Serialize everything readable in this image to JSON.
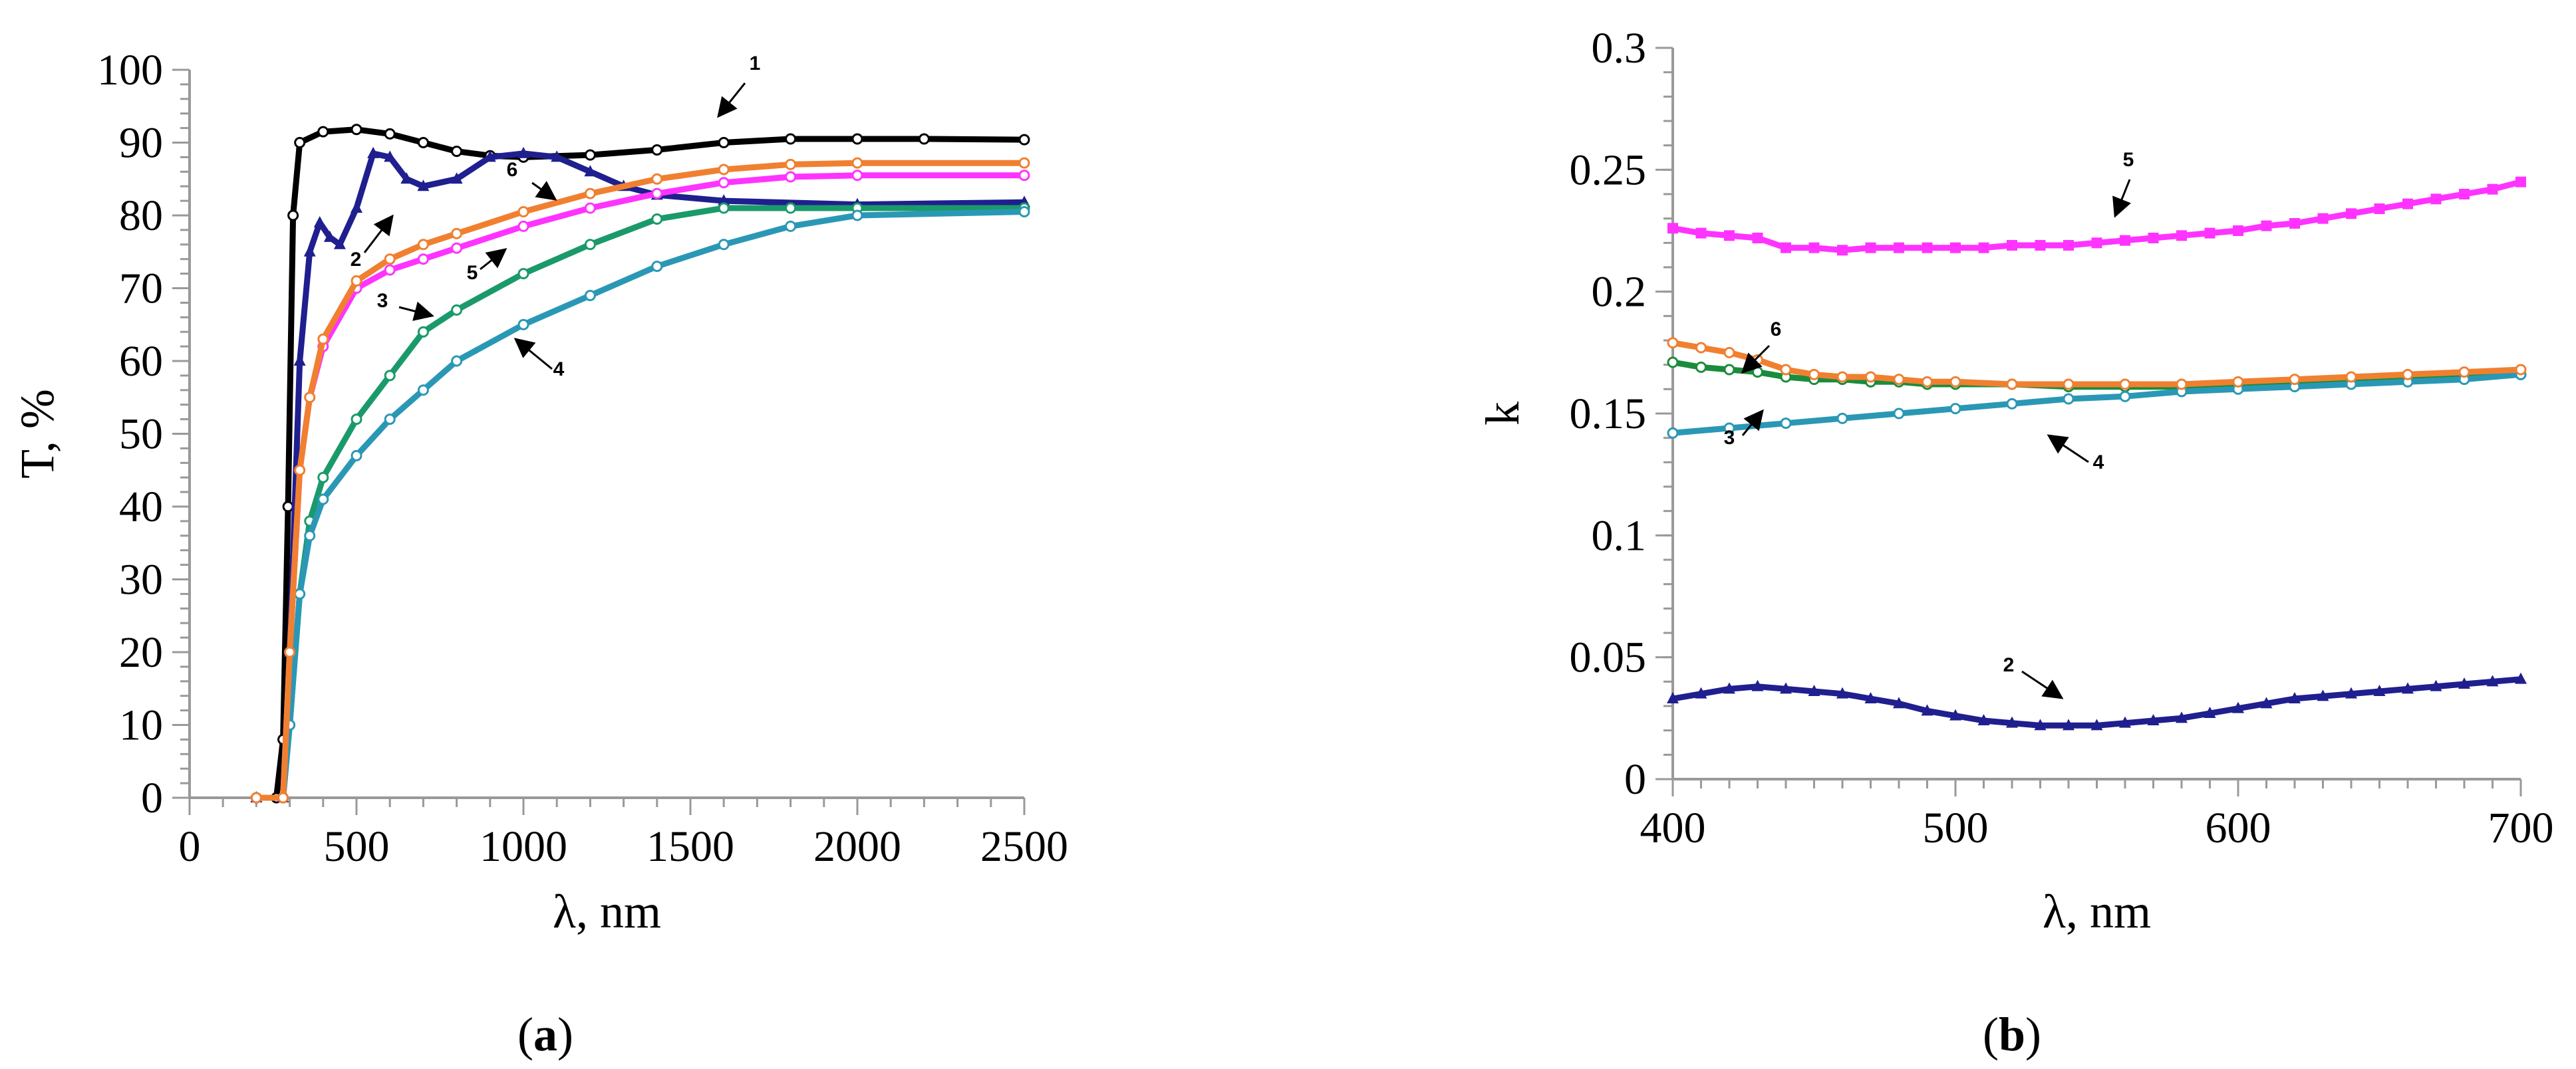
{
  "chart_data": [
    {
      "type": "line",
      "panel_label": "(a)",
      "panel_letter": "a",
      "xlabel": "λ, nm",
      "ylabel": "T, %",
      "xlim": [
        0,
        2500
      ],
      "ylim": [
        0,
        100
      ],
      "xticks": [
        0,
        500,
        1000,
        1500,
        2000,
        2500
      ],
      "yticks": [
        0,
        10,
        20,
        30,
        40,
        50,
        60,
        70,
        80,
        90,
        100
      ],
      "grid": false,
      "series": [
        {
          "name": "1",
          "color": "#000000",
          "marker": "circle",
          "points": [
            [
              200,
              0
            ],
            [
              260,
              0
            ],
            [
              280,
              8
            ],
            [
              295,
              40
            ],
            [
              310,
              80
            ],
            [
              330,
              90
            ],
            [
              400,
              91.5
            ],
            [
              500,
              91.8
            ],
            [
              600,
              91.2
            ],
            [
              700,
              90
            ],
            [
              800,
              88.8
            ],
            [
              900,
              88.2
            ],
            [
              1000,
              88
            ],
            [
              1200,
              88.3
            ],
            [
              1400,
              89
            ],
            [
              1600,
              90
            ],
            [
              1800,
              90.5
            ],
            [
              2000,
              90.5
            ],
            [
              2200,
              90.5
            ],
            [
              2500,
              90.4
            ]
          ]
        },
        {
          "name": "2",
          "color": "#1f1f8f",
          "marker": "triangle",
          "points": [
            [
              200,
              0
            ],
            [
              280,
              0
            ],
            [
              300,
              20
            ],
            [
              330,
              60
            ],
            [
              360,
              75
            ],
            [
              390,
              79
            ],
            [
              420,
              77
            ],
            [
              450,
              76
            ],
            [
              500,
              81
            ],
            [
              550,
              88.5
            ],
            [
              600,
              88
            ],
            [
              650,
              85
            ],
            [
              700,
              84
            ],
            [
              800,
              85
            ],
            [
              900,
              88
            ],
            [
              1000,
              88.5
            ],
            [
              1100,
              88
            ],
            [
              1200,
              86
            ],
            [
              1300,
              84
            ],
            [
              1400,
              82.8
            ],
            [
              1600,
              82
            ],
            [
              2000,
              81.5
            ],
            [
              2500,
              81.8
            ]
          ]
        },
        {
          "name": "3",
          "color": "#1a9a6a",
          "marker": "circle",
          "points": [
            [
              200,
              0
            ],
            [
              280,
              0
            ],
            [
              300,
              10
            ],
            [
              330,
              28
            ],
            [
              360,
              38
            ],
            [
              400,
              44
            ],
            [
              500,
              52
            ],
            [
              600,
              58
            ],
            [
              700,
              64
            ],
            [
              800,
              67
            ],
            [
              1000,
              72
            ],
            [
              1200,
              76
            ],
            [
              1400,
              79.5
            ],
            [
              1600,
              81
            ],
            [
              1800,
              81
            ],
            [
              2000,
              81
            ],
            [
              2500,
              81
            ]
          ]
        },
        {
          "name": "4",
          "color": "#2a98b5",
          "marker": "circle",
          "points": [
            [
              200,
              0
            ],
            [
              280,
              0
            ],
            [
              300,
              10
            ],
            [
              330,
              28
            ],
            [
              360,
              36
            ],
            [
              400,
              41
            ],
            [
              500,
              47
            ],
            [
              600,
              52
            ],
            [
              700,
              56
            ],
            [
              800,
              60
            ],
            [
              1000,
              65
            ],
            [
              1200,
              69
            ],
            [
              1400,
              73
            ],
            [
              1600,
              76
            ],
            [
              1800,
              78.5
            ],
            [
              2000,
              80
            ],
            [
              2500,
              80.5
            ]
          ]
        },
        {
          "name": "5",
          "color": "#ff33ff",
          "marker": "circle",
          "points": [
            [
              200,
              0
            ],
            [
              280,
              0
            ],
            [
              300,
              20
            ],
            [
              330,
              45
            ],
            [
              360,
              55
            ],
            [
              400,
              62
            ],
            [
              500,
              70
            ],
            [
              600,
              72.5
            ],
            [
              700,
              74
            ],
            [
              800,
              75.5
            ],
            [
              1000,
              78.5
            ],
            [
              1200,
              81
            ],
            [
              1400,
              83
            ],
            [
              1600,
              84.5
            ],
            [
              1800,
              85.3
            ],
            [
              2000,
              85.5
            ],
            [
              2500,
              85.5
            ]
          ]
        },
        {
          "name": "6",
          "color": "#f08030",
          "marker": "circle",
          "points": [
            [
              200,
              0
            ],
            [
              280,
              0
            ],
            [
              300,
              20
            ],
            [
              330,
              45
            ],
            [
              360,
              55
            ],
            [
              400,
              63
            ],
            [
              500,
              71
            ],
            [
              600,
              74
            ],
            [
              700,
              76
            ],
            [
              800,
              77.5
            ],
            [
              1000,
              80.5
            ],
            [
              1200,
              83
            ],
            [
              1400,
              85
            ],
            [
              1600,
              86.3
            ],
            [
              1800,
              87
            ],
            [
              2000,
              87.2
            ],
            [
              2500,
              87.2
            ]
          ]
        }
      ],
      "annotations": [
        {
          "text": "1",
          "series": "1"
        },
        {
          "text": "2",
          "series": "2"
        },
        {
          "text": "3",
          "series": "3"
        },
        {
          "text": "4",
          "series": "4"
        },
        {
          "text": "5",
          "series": "5"
        },
        {
          "text": "6",
          "series": "6"
        }
      ]
    },
    {
      "type": "line",
      "panel_label": "(b)",
      "panel_letter": "b",
      "xlabel": "λ, nm",
      "ylabel": "k",
      "xlim": [
        400,
        700
      ],
      "ylim": [
        0,
        0.3
      ],
      "xticks": [
        400,
        500,
        600,
        700
      ],
      "yticks": [
        0,
        0.05,
        0.1,
        0.15,
        0.2,
        0.25,
        0.3
      ],
      "ytick_labels": [
        "0",
        "0.05",
        "0.1",
        "0.15",
        "0.2",
        "0.25",
        "0.3"
      ],
      "grid": false,
      "series": [
        {
          "name": "2",
          "color": "#1f1f8f",
          "marker": "triangle",
          "points": [
            [
              400,
              0.033
            ],
            [
              410,
              0.035
            ],
            [
              420,
              0.037
            ],
            [
              430,
              0.038
            ],
            [
              440,
              0.037
            ],
            [
              450,
              0.036
            ],
            [
              460,
              0.035
            ],
            [
              470,
              0.033
            ],
            [
              480,
              0.031
            ],
            [
              490,
              0.028
            ],
            [
              500,
              0.026
            ],
            [
              510,
              0.024
            ],
            [
              520,
              0.023
            ],
            [
              530,
              0.022
            ],
            [
              540,
              0.022
            ],
            [
              550,
              0.022
            ],
            [
              560,
              0.023
            ],
            [
              570,
              0.024
            ],
            [
              580,
              0.025
            ],
            [
              590,
              0.027
            ],
            [
              600,
              0.029
            ],
            [
              610,
              0.031
            ],
            [
              620,
              0.033
            ],
            [
              630,
              0.034
            ],
            [
              640,
              0.035
            ],
            [
              650,
              0.036
            ],
            [
              660,
              0.037
            ],
            [
              670,
              0.038
            ],
            [
              680,
              0.039
            ],
            [
              690,
              0.04
            ],
            [
              700,
              0.041
            ]
          ]
        },
        {
          "name": "3",
          "color": "#1a8c3c",
          "marker": "circle",
          "points": [
            [
              400,
              0.171
            ],
            [
              410,
              0.169
            ],
            [
              420,
              0.168
            ],
            [
              430,
              0.167
            ],
            [
              440,
              0.165
            ],
            [
              450,
              0.164
            ],
            [
              460,
              0.164
            ],
            [
              470,
              0.163
            ],
            [
              480,
              0.163
            ],
            [
              490,
              0.162
            ],
            [
              500,
              0.162
            ],
            [
              520,
              0.162
            ],
            [
              540,
              0.161
            ],
            [
              560,
              0.161
            ],
            [
              580,
              0.161
            ],
            [
              600,
              0.161
            ],
            [
              620,
              0.162
            ],
            [
              640,
              0.163
            ],
            [
              660,
              0.164
            ],
            [
              680,
              0.165
            ],
            [
              700,
              0.166
            ]
          ]
        },
        {
          "name": "4",
          "color": "#2a98b5",
          "marker": "circle",
          "points": [
            [
              400,
              0.142
            ],
            [
              420,
              0.144
            ],
            [
              440,
              0.146
            ],
            [
              460,
              0.148
            ],
            [
              480,
              0.15
            ],
            [
              500,
              0.152
            ],
            [
              520,
              0.154
            ],
            [
              540,
              0.156
            ],
            [
              560,
              0.157
            ],
            [
              580,
              0.159
            ],
            [
              600,
              0.16
            ],
            [
              620,
              0.161
            ],
            [
              640,
              0.162
            ],
            [
              660,
              0.163
            ],
            [
              680,
              0.164
            ],
            [
              700,
              0.166
            ]
          ]
        },
        {
          "name": "5",
          "color": "#ff33ff",
          "marker": "square",
          "points": [
            [
              400,
              0.226
            ],
            [
              410,
              0.224
            ],
            [
              420,
              0.223
            ],
            [
              430,
              0.222
            ],
            [
              440,
              0.218
            ],
            [
              450,
              0.218
            ],
            [
              460,
              0.217
            ],
            [
              470,
              0.218
            ],
            [
              480,
              0.218
            ],
            [
              490,
              0.218
            ],
            [
              500,
              0.218
            ],
            [
              510,
              0.218
            ],
            [
              520,
              0.219
            ],
            [
              530,
              0.219
            ],
            [
              540,
              0.219
            ],
            [
              550,
              0.22
            ],
            [
              560,
              0.221
            ],
            [
              570,
              0.222
            ],
            [
              580,
              0.223
            ],
            [
              590,
              0.224
            ],
            [
              600,
              0.225
            ],
            [
              610,
              0.227
            ],
            [
              620,
              0.228
            ],
            [
              630,
              0.23
            ],
            [
              640,
              0.232
            ],
            [
              650,
              0.234
            ],
            [
              660,
              0.236
            ],
            [
              670,
              0.238
            ],
            [
              680,
              0.24
            ],
            [
              690,
              0.242
            ],
            [
              700,
              0.245
            ]
          ]
        },
        {
          "name": "6",
          "color": "#f08030",
          "marker": "circle",
          "points": [
            [
              400,
              0.179
            ],
            [
              410,
              0.177
            ],
            [
              420,
              0.175
            ],
            [
              430,
              0.172
            ],
            [
              440,
              0.168
            ],
            [
              450,
              0.166
            ],
            [
              460,
              0.165
            ],
            [
              470,
              0.165
            ],
            [
              480,
              0.164
            ],
            [
              490,
              0.163
            ],
            [
              500,
              0.163
            ],
            [
              520,
              0.162
            ],
            [
              540,
              0.162
            ],
            [
              560,
              0.162
            ],
            [
              580,
              0.162
            ],
            [
              600,
              0.163
            ],
            [
              620,
              0.164
            ],
            [
              640,
              0.165
            ],
            [
              660,
              0.166
            ],
            [
              680,
              0.167
            ],
            [
              700,
              0.168
            ]
          ]
        }
      ],
      "annotations": [
        {
          "text": "2",
          "series": "2"
        },
        {
          "text": "3",
          "series": "3"
        },
        {
          "text": "4",
          "series": "4"
        },
        {
          "text": "5",
          "series": "5"
        },
        {
          "text": "6",
          "series": "6"
        }
      ]
    }
  ]
}
